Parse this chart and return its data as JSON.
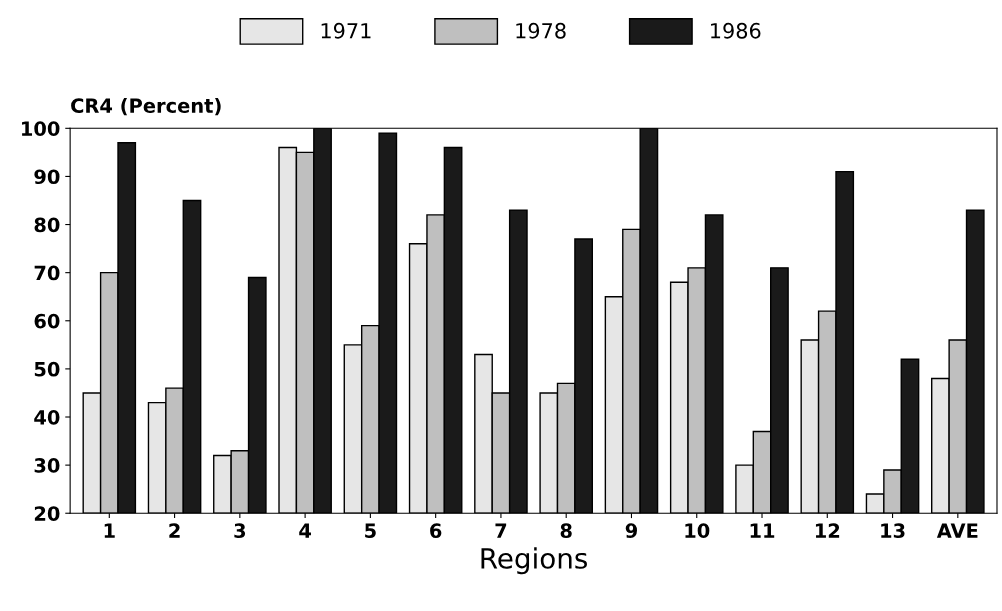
{
  "chart_data": {
    "type": "bar",
    "xlabel": "Regions",
    "ylabel": "CR4 (Percent)",
    "categories": [
      "1",
      "2",
      "3",
      "4",
      "5",
      "6",
      "7",
      "8",
      "9",
      "10",
      "11",
      "12",
      "13",
      "AVE"
    ],
    "series": [
      {
        "name": "1971",
        "color": "#e6e6e6",
        "values": [
          45,
          43,
          32,
          96,
          55,
          76,
          53,
          45,
          65,
          68,
          30,
          56,
          24,
          48
        ]
      },
      {
        "name": "1978",
        "color": "#bfbfbf",
        "values": [
          70,
          46,
          33,
          95,
          59,
          82,
          45,
          47,
          79,
          71,
          37,
          62,
          29,
          56
        ]
      },
      {
        "name": "1986",
        "color": "#1a1a1a",
        "values": [
          97,
          85,
          69,
          100,
          99,
          96,
          83,
          77,
          100,
          82,
          71,
          91,
          52,
          83
        ]
      }
    ],
    "ylim": [
      20,
      100
    ],
    "yticks": [
      20,
      30,
      40,
      50,
      60,
      70,
      80,
      90,
      100
    ],
    "grid": false,
    "legend": "top"
  }
}
